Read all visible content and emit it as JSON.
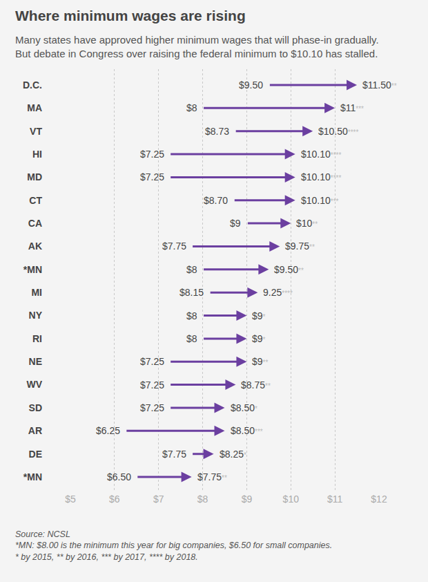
{
  "chart_data": {
    "type": "arrow",
    "orientation": "horizontal",
    "title": "Where minimum wages are rising",
    "subtitle": [
      "Many states have approved higher minimum wages that will phase-in gradually.",
      "But debate in Congress over raising the federal minimum to $10.10 has stalled."
    ],
    "source": "Source: NCSL",
    "notes": [
      "*MN: $8.00 is the minimum this year for big companies, $6.50 for small companies.",
      "* by 2015, ** by 2016, *** by 2017, **** by 2018."
    ],
    "categories": [
      "D.C.",
      "MA",
      "VT",
      "HI",
      "MD",
      "CT",
      "CA",
      "AK",
      "*MN",
      "MI",
      "NY",
      "RI",
      "NE",
      "WV",
      "SD",
      "AR",
      "DE",
      "*MN"
    ],
    "values_from": [
      9.5,
      8,
      8.73,
      7.25,
      7.25,
      8.7,
      9,
      7.75,
      8,
      8.15,
      8,
      8,
      7.25,
      7.25,
      7.25,
      6.25,
      7.75,
      6.5
    ],
    "value_labels_from": [
      "$9.50",
      "$8",
      "$8.73",
      "$7.25",
      "$7.25",
      "$8.70",
      "$9",
      "$7.75",
      "$8",
      "$8.15",
      "$8",
      "$8",
      "$7.25",
      "$7.25",
      "$7.25",
      "$6.25",
      "$7.75",
      "$6.50"
    ],
    "values": [
      11.5,
      11,
      10.5,
      10.1,
      10.1,
      10.1,
      10,
      9.75,
      9.5,
      9.25,
      9,
      9,
      9,
      8.75,
      8.5,
      8.5,
      8.25,
      7.75
    ],
    "value_labels": [
      "$11.50**",
      "$11***",
      "$10.50****",
      "$10.10****",
      "$10.10****",
      "$10.10***",
      "$10**",
      "$9.75**",
      "$9.50**",
      "9.25****",
      "$9*",
      "$9*",
      "$9**",
      "$8.75**",
      "$8.50*",
      "$8.50***",
      "$8.25*",
      "$7.75**"
    ],
    "data_labels": true,
    "color": "#6b3fa0",
    "xlim": [
      5,
      12
    ],
    "xticks": [
      {
        "value": 5,
        "label": "$5"
      },
      {
        "value": 6,
        "label": "$6"
      },
      {
        "value": 7,
        "label": "$7"
      },
      {
        "value": 8,
        "label": "$8"
      },
      {
        "value": 9,
        "label": "$9"
      },
      {
        "value": 10,
        "label": "$10"
      },
      {
        "value": 11,
        "label": "$11"
      },
      {
        "value": 12,
        "label": "$12"
      }
    ],
    "grid": true
  }
}
